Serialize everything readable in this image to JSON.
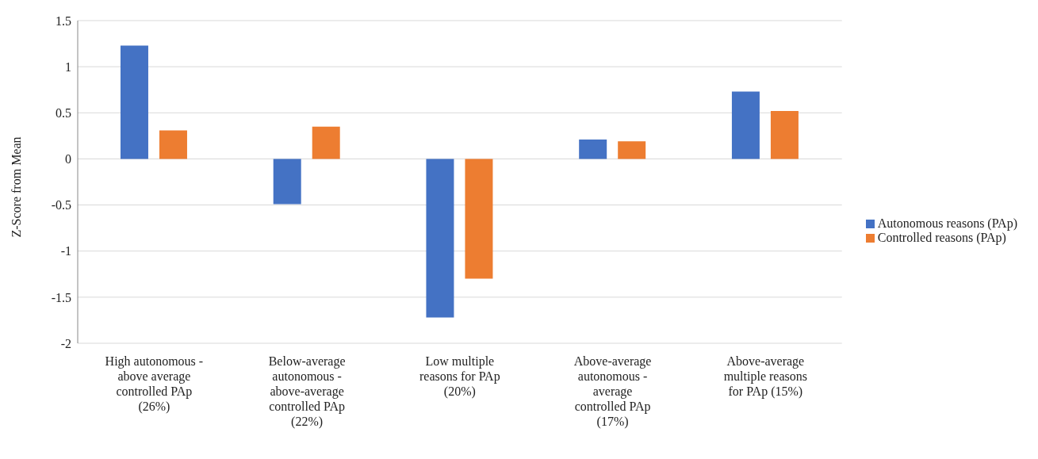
{
  "chart_data": {
    "type": "bar",
    "ylabel": "Z-Score from Mean",
    "categories": [
      "High autonomous - above average controlled PAp (26%)",
      "Below-average autonomous - above-average controlled PAp (22%)",
      "Low multiple reasons for PAp (20%)",
      "Above-average autonomous - average controlled PAp (17%)",
      "Above-average multiple reasons for PAp (15%)"
    ],
    "series": [
      {
        "name": "Autonomous reasons (PAp)",
        "color": "#4472c4",
        "values": [
          1.23,
          -0.49,
          -1.72,
          0.21,
          0.73
        ]
      },
      {
        "name": "Controlled reasons (PAp)",
        "color": "#ed7d31",
        "values": [
          0.31,
          0.35,
          -1.3,
          0.19,
          0.52
        ]
      }
    ],
    "ylim": [
      -2,
      1.5
    ],
    "yticks": [
      -2,
      -1.5,
      -1,
      -0.5,
      0,
      0.5,
      1,
      1.5
    ],
    "grid": "y",
    "legend": "right"
  }
}
